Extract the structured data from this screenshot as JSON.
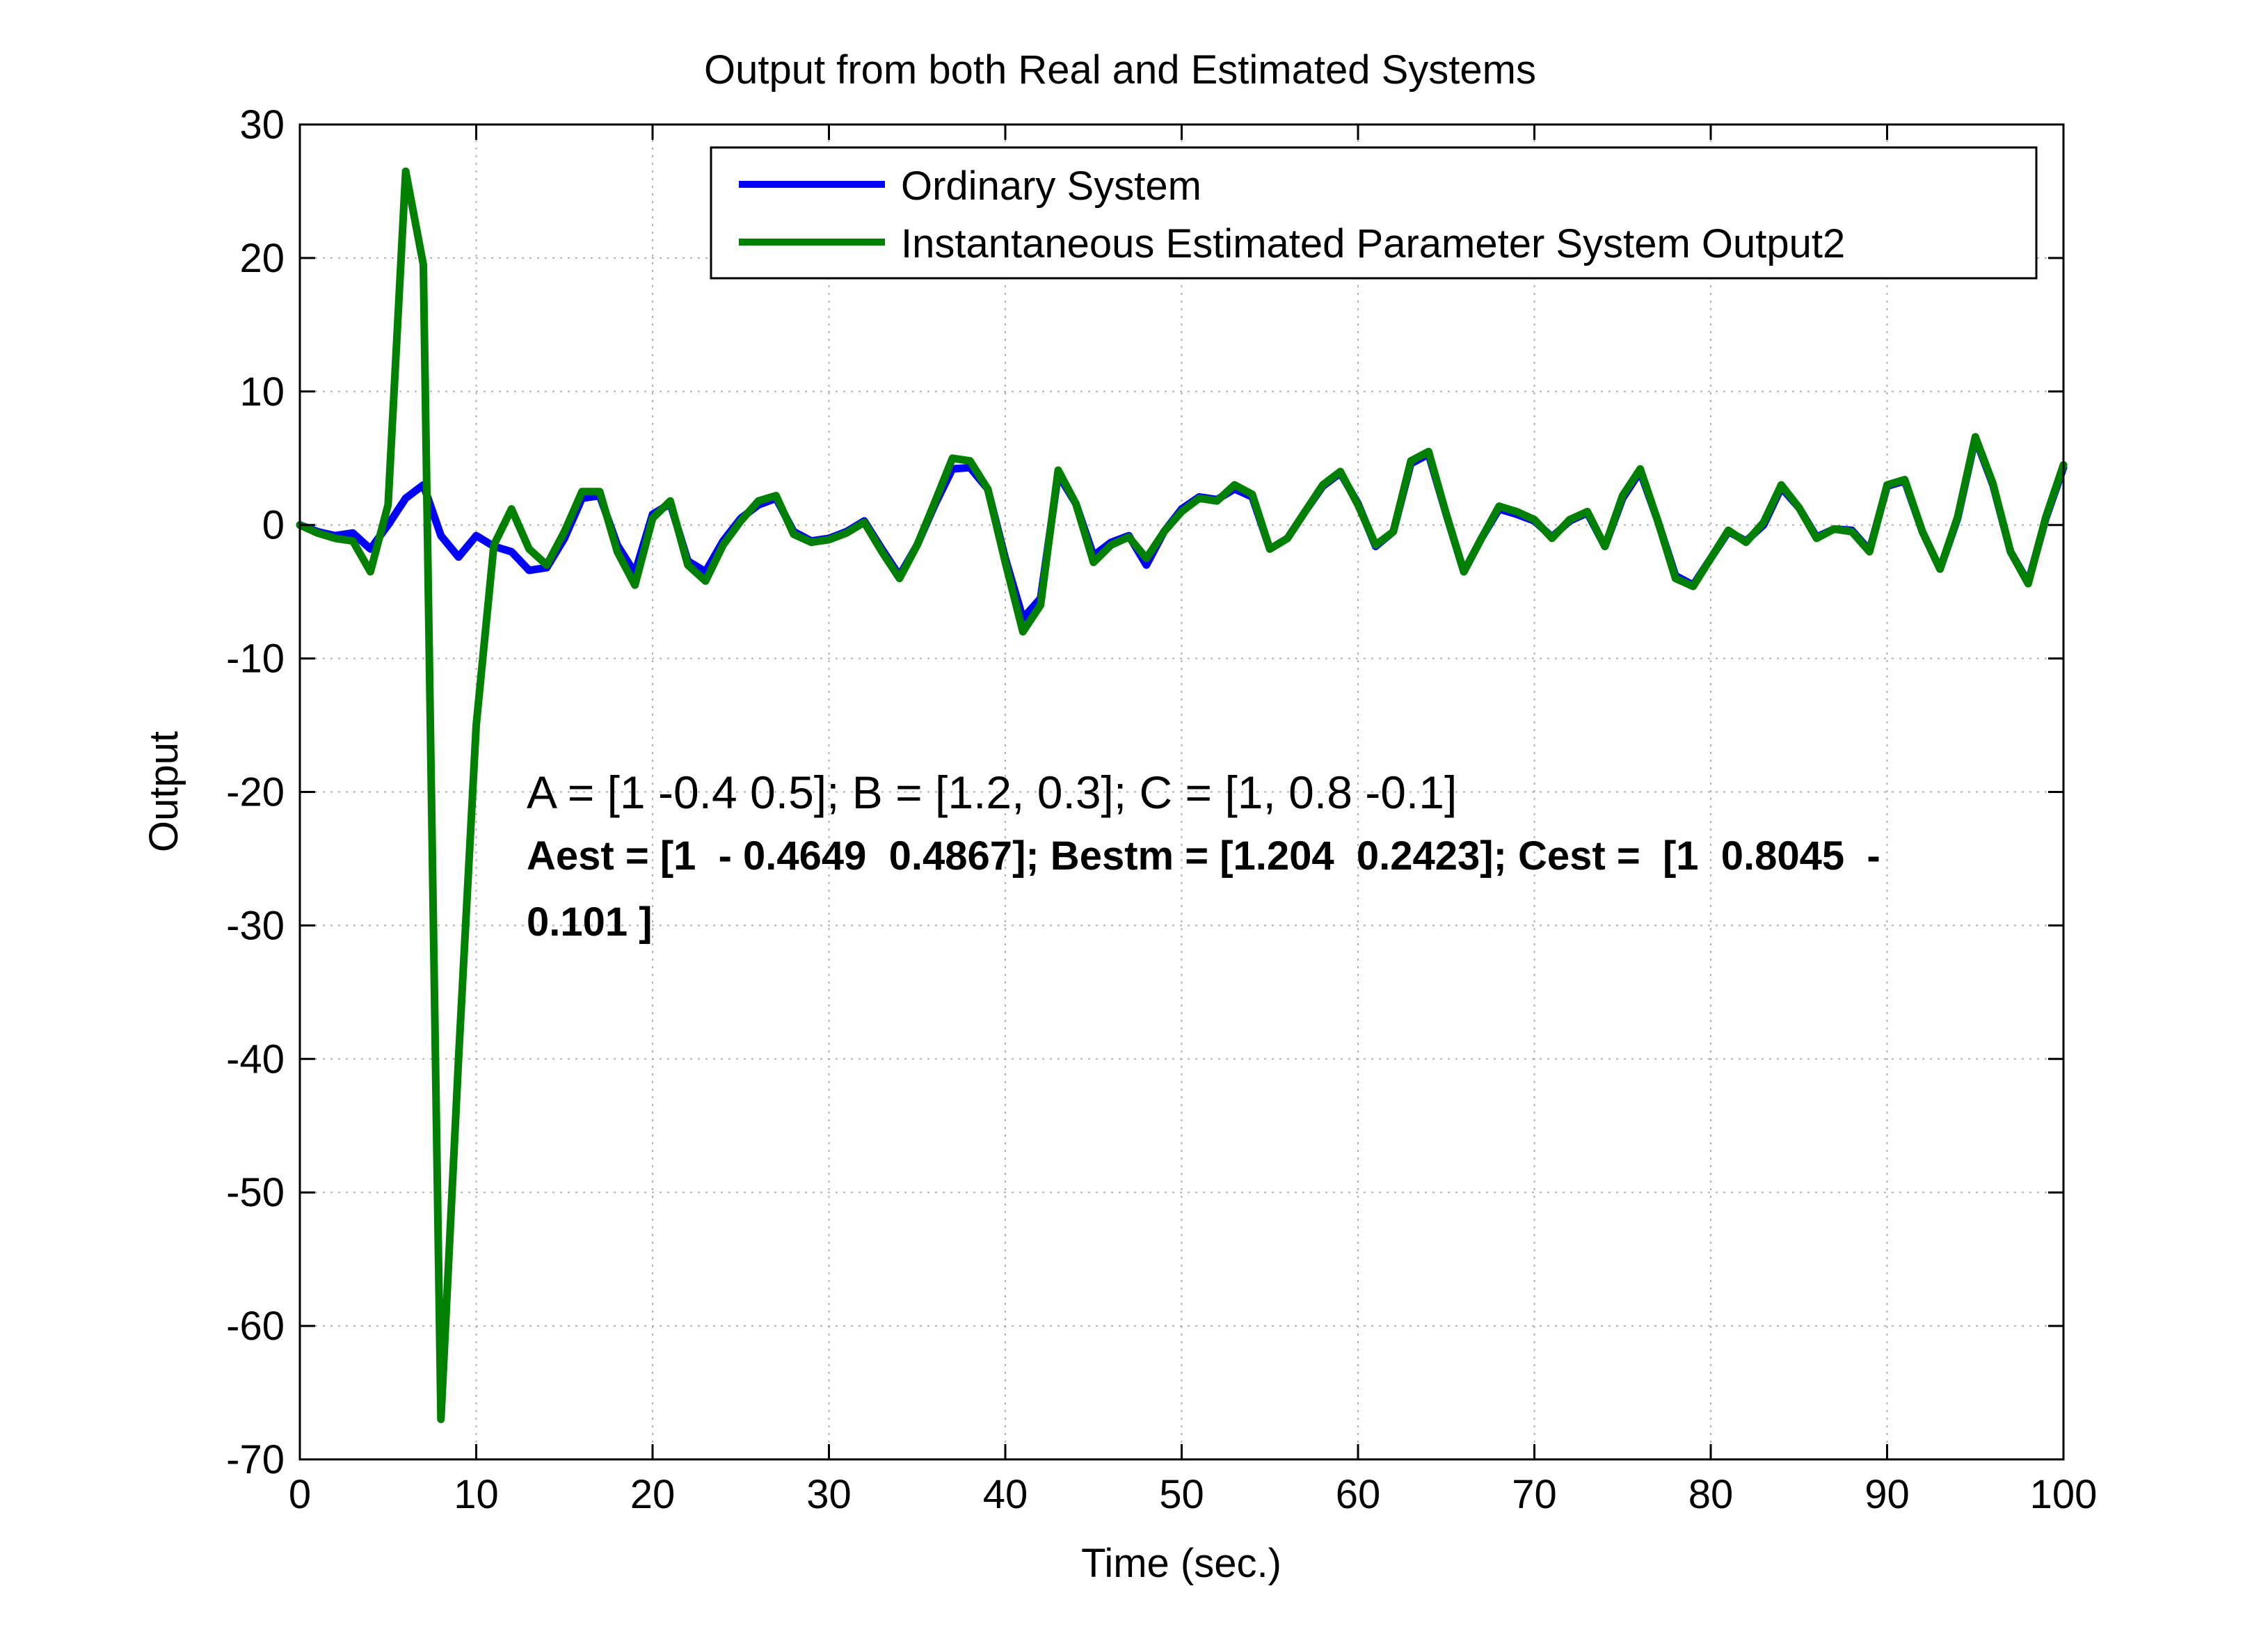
{
  "chart_data": {
    "type": "line",
    "title": "Output from both Real and Estimated Systems",
    "xlabel": "Time (sec.)",
    "ylabel": "Output",
    "xlim": [
      0,
      100
    ],
    "ylim": [
      -70,
      30
    ],
    "xticks": [
      "0",
      "10",
      "20",
      "30",
      "40",
      "50",
      "60",
      "70",
      "80",
      "90",
      "100"
    ],
    "yticks": [
      "30",
      "20",
      "10",
      "0",
      "-10",
      "-20",
      "-30",
      "-40",
      "-50",
      "-60",
      "-70"
    ],
    "grid": true,
    "legend_position": "top-right",
    "x": [
      0,
      1,
      2,
      3,
      4,
      5,
      6,
      7,
      8,
      9,
      10,
      11,
      12,
      13,
      14,
      15,
      16,
      17,
      18,
      19,
      20,
      21,
      22,
      23,
      24,
      25,
      26,
      27,
      28,
      29,
      30,
      31,
      32,
      33,
      34,
      35,
      36,
      37,
      38,
      39,
      40,
      41,
      42,
      43,
      44,
      45,
      46,
      47,
      48,
      49,
      50,
      51,
      52,
      53,
      54,
      55,
      56,
      57,
      58,
      59,
      60,
      61,
      62,
      63,
      64,
      65,
      66,
      67,
      68,
      69,
      70,
      71,
      72,
      73,
      74,
      75,
      76,
      77,
      78,
      79,
      80,
      81,
      82,
      83,
      84,
      85,
      86,
      87,
      88,
      89,
      90,
      91,
      92,
      93,
      94,
      95,
      96,
      97,
      98,
      99,
      100
    ],
    "series": [
      {
        "name": "Ordinary System",
        "color": "#0000ff",
        "values": [
          0,
          -0.5,
          -0.8,
          -0.6,
          -1.8,
          0,
          2,
          3,
          -0.8,
          -2.4,
          -0.8,
          -1.6,
          -2,
          -3.4,
          -3.2,
          -1,
          2,
          2.2,
          -1.5,
          -3.6,
          0.8,
          1.6,
          -2.7,
          -3.5,
          -1.2,
          0.5,
          1.5,
          2,
          -0.5,
          -1.2,
          -1,
          -0.5,
          0.3,
          -1.8,
          -3.8,
          -1.5,
          1.5,
          4.2,
          4.3,
          2.7,
          -2.5,
          -7,
          -5.5,
          3.8,
          1.6,
          -2.3,
          -1.3,
          -0.8,
          -3,
          -0.5,
          1.2,
          2.1,
          1.9,
          2.7,
          2.1,
          -1.8,
          -1,
          1,
          2.9,
          3.9,
          1.6,
          -1.6,
          -0.5,
          4.6,
          5.3,
          0.8,
          -3.5,
          -1,
          1.2,
          0.8,
          0.3,
          -0.9,
          0.3,
          0.9,
          -1.6,
          2,
          4,
          0.3,
          -3.8,
          -4.5,
          -2.5,
          -0.5,
          -1.2,
          0,
          2.8,
          1.3,
          -0.9,
          -0.3,
          -0.4,
          -1.9,
          2.9,
          3.3,
          -0.5,
          -3.3,
          0.5,
          6.5,
          3,
          -2,
          -4.3,
          0.5,
          4.3
        ]
      },
      {
        "name": "Instantaneous Estimated Parameter System Output2",
        "color": "#008000",
        "values": [
          0,
          -0.6,
          -1,
          -1.2,
          -3.5,
          1.5,
          26.5,
          19.5,
          -67,
          -40,
          -15,
          -1.5,
          1.2,
          -1.8,
          -3,
          -0.5,
          2.5,
          2.5,
          -2,
          -4.5,
          0.5,
          1.8,
          -3,
          -4.2,
          -1.5,
          0.3,
          1.8,
          2.2,
          -0.7,
          -1.3,
          -1.1,
          -0.6,
          0.2,
          -2,
          -4,
          -1.5,
          1.7,
          5,
          4.8,
          2.7,
          -2.8,
          -8,
          -6,
          4.1,
          1.6,
          -2.8,
          -1.5,
          -0.9,
          -2.5,
          -0.5,
          1,
          2,
          1.8,
          3,
          2.3,
          -1.8,
          -1,
          1,
          3,
          4,
          1.5,
          -1.5,
          -0.5,
          4.8,
          5.5,
          0.8,
          -3.5,
          -1,
          1.4,
          1,
          0.4,
          -1,
          0.4,
          1,
          -1.6,
          2.2,
          4.2,
          0.3,
          -4,
          -4.6,
          -2.5,
          -0.4,
          -1.3,
          0.2,
          3,
          1.3,
          -1,
          -0.3,
          -0.5,
          -2,
          3,
          3.4,
          -0.5,
          -3.3,
          0.6,
          6.6,
          3.1,
          -2,
          -4.4,
          0.6,
          4.5
        ]
      }
    ],
    "annotations": [
      "A = [1 -0.4 0.5]; B = [1.2, 0.3]; C = [1, 0.8 -0.1]",
      "Aest = [1  - 0.4649  0.4867]; Bestm = [1.204  0.2423]; Cest =  [1  0.8045  -",
      "0.101 ]"
    ]
  }
}
